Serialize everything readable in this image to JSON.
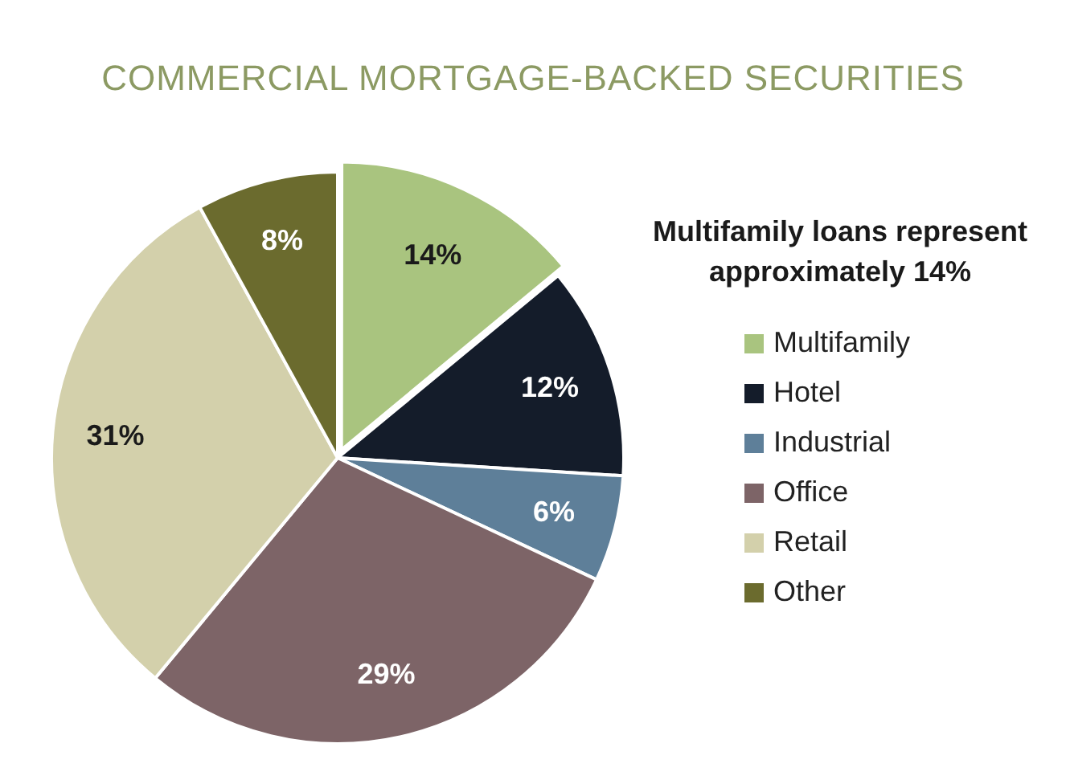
{
  "chart_data": {
    "type": "pie",
    "title": "COMMERCIAL MORTGAGE-BACKED SECURITIES",
    "annotations": [
      "Multifamily loans represent approximately 14%"
    ],
    "categories": [
      "Multifamily",
      "Hotel",
      "Industrial",
      "Office",
      "Retail",
      "Other"
    ],
    "values": [
      14,
      12,
      6,
      29,
      31,
      8
    ],
    "value_labels": [
      "14%",
      "12%",
      "6%",
      "29%",
      "31%",
      "8%"
    ],
    "colors": [
      "#a9c47f",
      "#141c2a",
      "#5e7f99",
      "#7d6467",
      "#d3d0ab",
      "#6b6b2e"
    ],
    "legend": "right"
  }
}
